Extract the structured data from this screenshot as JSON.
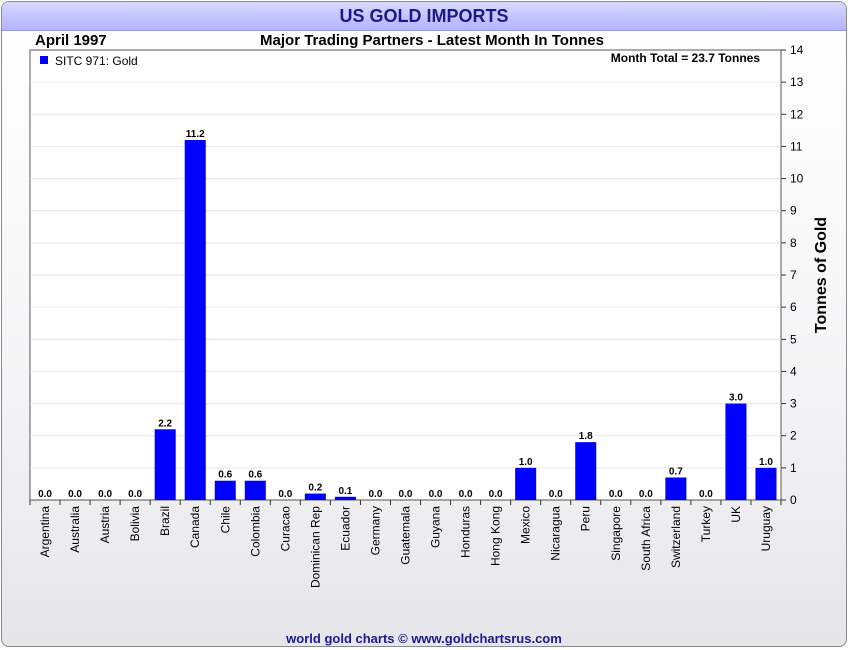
{
  "header": {
    "title": "US GOLD IMPORTS",
    "date": "April 1997",
    "subtitle": "Major Trading Partners - Latest Month In Tonnes",
    "month_total": "Month Total = 23.7 Tonnes"
  },
  "footer": {
    "credit": "world gold charts © www.goldchartsrus.com"
  },
  "colors": {
    "bar": "#0000ff",
    "title_bg": "#b3b3ff",
    "title_text": "#1a1a8c"
  },
  "chart_data": {
    "type": "bar",
    "title": "US GOLD IMPORTS",
    "subtitle": "Major Trading Partners - Latest Month In Tonnes",
    "ylabel": "Tonnes of Gold",
    "ylim": [
      0,
      14
    ],
    "yticks": [
      0,
      1,
      2,
      3,
      4,
      5,
      6,
      7,
      8,
      9,
      10,
      11,
      12,
      13,
      14
    ],
    "y_axis_position": "right",
    "grid": true,
    "legend": {
      "position": "top-left",
      "entries": [
        "SITC 971: Gold"
      ]
    },
    "categories": [
      "Argentina",
      "Australia",
      "Austria",
      "Bolivia",
      "Brazil",
      "Canada",
      "Chile",
      "Colombia",
      "Curacao",
      "Dominican Rep",
      "Ecuador",
      "Germany",
      "Guatemala",
      "Guyana",
      "Honduras",
      "Hong Kong",
      "Mexico",
      "Nicaragua",
      "Peru",
      "Singapore",
      "South Africa",
      "Switzerland",
      "Turkey",
      "UK",
      "Uruguay"
    ],
    "series": [
      {
        "name": "SITC 971: Gold",
        "values": [
          0.0,
          0.0,
          0.0,
          0.0,
          2.2,
          11.2,
          0.6,
          0.6,
          0.0,
          0.2,
          0.1,
          0.0,
          0.0,
          0.0,
          0.0,
          0.0,
          1.0,
          0.0,
          1.8,
          0.0,
          0.0,
          0.7,
          0.0,
          3.0,
          1.0
        ],
        "labels": [
          "0.0",
          "0.0",
          "0.0",
          "0.0",
          "2.2",
          "11.2",
          "0.6",
          "0.6",
          "0.0",
          "0.2",
          "0.1",
          "0.0",
          "0.0",
          "0.0",
          "0.0",
          "0.0",
          "1.0",
          "0.0",
          "1.8",
          "0.0",
          "0.0",
          "0.7",
          "0.0",
          "3.0",
          "1.0"
        ]
      }
    ]
  }
}
